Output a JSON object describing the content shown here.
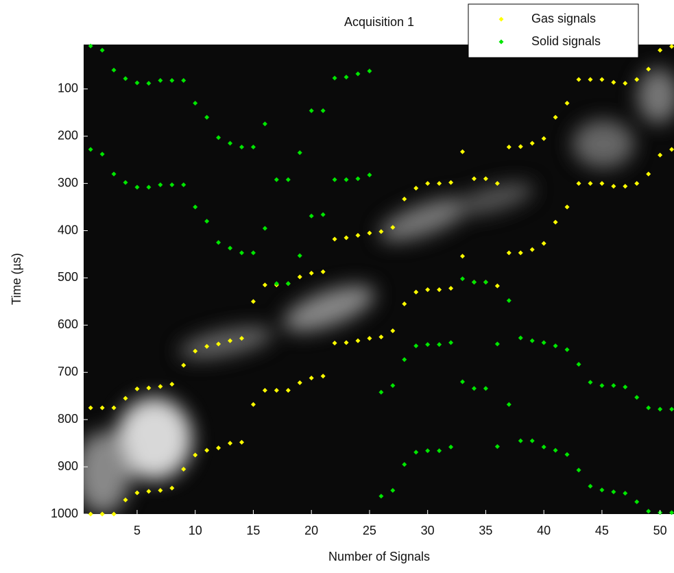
{
  "chart_data": {
    "type": "scatter",
    "title": "Acquisition 1",
    "x_label": "Number of Signals",
    "y_label": "Time (µs)",
    "xlim": [
      0.4,
      51.2
    ],
    "ylim": [
      6,
      1000
    ],
    "y_inverted": true,
    "xticks": [
      5,
      10,
      15,
      20,
      25,
      30,
      35,
      40,
      45,
      50
    ],
    "yticks": [
      100,
      200,
      300,
      400,
      500,
      600,
      700,
      800,
      900,
      1000
    ],
    "legend": "top-right",
    "series": [
      {
        "name": "Gas signals",
        "color": "#ffff00",
        "x": [
          1,
          2,
          3,
          4,
          5,
          6,
          7,
          8,
          9,
          10,
          11,
          12,
          13,
          14,
          15,
          16,
          17,
          18,
          19,
          20,
          21,
          22,
          23,
          24,
          25,
          26,
          27,
          28,
          29,
          30,
          31,
          32,
          33,
          34,
          35,
          36,
          37,
          38,
          39,
          40,
          41,
          42,
          43,
          44,
          45,
          46,
          47,
          48,
          49,
          50,
          51,
          1,
          2,
          3,
          4,
          5,
          6,
          7,
          8,
          9,
          10,
          11,
          12,
          13,
          14,
          15,
          16,
          17,
          18,
          19,
          20,
          21,
          22,
          23,
          24,
          25,
          26,
          27,
          28,
          29,
          30,
          31,
          32,
          33,
          34,
          35,
          36,
          37,
          38,
          39,
          40,
          41,
          42,
          43,
          44,
          45,
          46,
          47,
          48,
          49,
          50,
          51
        ],
        "y": [
          775,
          775,
          775,
          755,
          735,
          733,
          730,
          725,
          685,
          655,
          645,
          640,
          633,
          628,
          550,
          515,
          515,
          512,
          498,
          490,
          487,
          418,
          415,
          410,
          405,
          402,
          393,
          333,
          310,
          300,
          300,
          298,
          233,
          290,
          290,
          300,
          223,
          222,
          215,
          205,
          160,
          130,
          80,
          80,
          80,
          86,
          88,
          80,
          58,
          18,
          10,
          1000,
          1000,
          1000,
          970,
          955,
          952,
          950,
          945,
          905,
          875,
          865,
          860,
          850,
          848,
          768,
          738,
          738,
          738,
          722,
          712,
          708,
          638,
          637,
          633,
          628,
          625,
          612,
          555,
          530,
          525,
          525,
          522,
          454,
          509,
          509,
          517,
          447,
          447,
          440,
          427,
          382,
          350,
          300,
          300,
          300,
          306,
          306,
          300,
          280,
          240,
          228
        ]
      },
      {
        "name": "Solid signals",
        "color": "#00e600",
        "x": [
          1,
          2,
          3,
          4,
          5,
          6,
          7,
          8,
          9,
          10,
          11,
          12,
          13,
          14,
          15,
          16,
          17,
          18,
          19,
          20,
          21,
          22,
          23,
          24,
          25,
          1,
          2,
          3,
          4,
          5,
          6,
          7,
          8,
          9,
          10,
          11,
          12,
          13,
          14,
          15,
          16,
          17,
          18,
          19,
          20,
          21,
          22,
          23,
          24,
          25,
          26,
          27,
          28,
          29,
          30,
          31,
          32,
          33,
          34,
          35,
          36,
          37,
          38,
          39,
          40,
          41,
          42,
          43,
          44,
          45,
          46,
          47,
          48,
          49,
          50,
          51,
          26,
          27,
          28,
          29,
          30,
          31,
          32,
          33,
          34,
          35,
          36,
          37,
          38,
          39,
          40,
          41,
          42,
          43,
          44,
          45,
          46,
          47,
          48,
          49,
          50,
          51
        ],
        "y": [
          9,
          18,
          60,
          78,
          87,
          88,
          82,
          82,
          82,
          130,
          160,
          203,
          215,
          223,
          223,
          174,
          292,
          292,
          235,
          146,
          146,
          77,
          75,
          68,
          62,
          228,
          238,
          280,
          298,
          308,
          308,
          303,
          303,
          303,
          350,
          380,
          425,
          437,
          447,
          447,
          395,
          512,
          512,
          453,
          369,
          366,
          292,
          292,
          290,
          282,
          742,
          728,
          673,
          644,
          641,
          641,
          637,
          502,
          509,
          509,
          640,
          548,
          627,
          633,
          637,
          644,
          652,
          683,
          721,
          728,
          728,
          731,
          753,
          775,
          778,
          778,
          962,
          950,
          895,
          869,
          866,
          866,
          858,
          720,
          734,
          734,
          857,
          768,
          845,
          845,
          858,
          865,
          874,
          907,
          941,
          949,
          953,
          956,
          974,
          994,
          997,
          997
        ]
      }
    ]
  }
}
